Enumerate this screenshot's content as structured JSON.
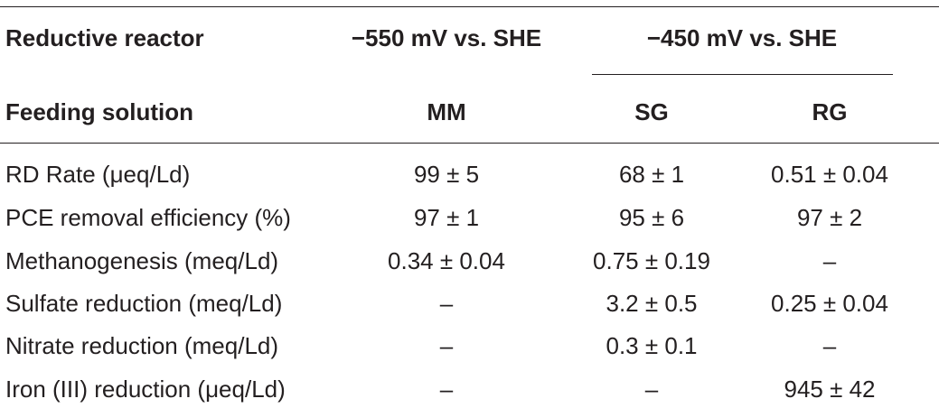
{
  "header": {
    "row1_label": "Reductive reactor",
    "group1": "−550 mV vs. SHE",
    "group2": "−450 mV vs. SHE",
    "row2_label": "Feeding solution",
    "col1": "MM",
    "col2": "SG",
    "col3": "RG"
  },
  "rows": [
    {
      "label": "RD Rate (μeq/Ld)",
      "mm": "99 ± 5",
      "sg": "68 ± 1",
      "rg": "0.51 ± 0.04"
    },
    {
      "label": "PCE removal efficiency (%)",
      "mm": "97 ± 1",
      "sg": "95 ± 6",
      "rg": "97 ± 2"
    },
    {
      "label": "Methanogenesis (meq/Ld)",
      "mm": "0.34 ± 0.04",
      "sg": "0.75 ± 0.19",
      "rg": "–"
    },
    {
      "label": "Sulfate reduction (meq/Ld)",
      "mm": "–",
      "sg": "3.2 ± 0.5",
      "rg": "0.25 ± 0.04"
    },
    {
      "label": "Nitrate reduction (meq/Ld)",
      "mm": "–",
      "sg": "0.3 ± 0.1",
      "rg": "–"
    },
    {
      "label": "Iron (III) reduction (μeq/Ld)",
      "mm": "–",
      "sg": "–",
      "rg": "945 ± 42"
    }
  ]
}
